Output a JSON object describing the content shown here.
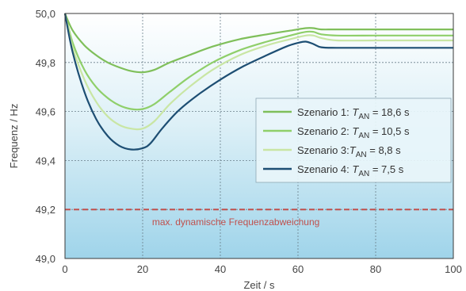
{
  "chart_data": {
    "type": "line",
    "xlabel": "Zeit / s",
    "ylabel": "Frequenz / Hz",
    "xlim": [
      0,
      100
    ],
    "ylim": [
      49.0,
      50.0
    ],
    "xticks": [
      "0",
      "20",
      "40",
      "60",
      "80",
      "100"
    ],
    "yticks": [
      "49,0",
      "49,2",
      "49,4",
      "49,6",
      "49,8",
      "50,0"
    ],
    "grid": "dashed vertical and horizontal",
    "legend_position": "right",
    "background": "gradient white to light blue",
    "series": [
      {
        "name": "Szenario 1: T_AN = 18,6 s",
        "legend": {
          "prefix": "Szenario 1: ",
          "sym": "T",
          "sub": "AN",
          "suffix": " = 18,6 s"
        },
        "color": "#7fbf5a",
        "x": [
          0,
          2,
          5,
          8,
          11,
          14,
          17,
          20,
          23,
          27,
          32,
          38,
          45,
          52,
          58,
          62,
          64,
          66,
          70,
          80,
          90,
          100
        ],
        "y": [
          50.0,
          49.93,
          49.87,
          49.83,
          49.8,
          49.78,
          49.765,
          49.76,
          49.77,
          49.8,
          49.83,
          49.865,
          49.895,
          49.915,
          49.93,
          49.94,
          49.94,
          49.935,
          49.935,
          49.935,
          49.935,
          49.935
        ]
      },
      {
        "name": "Szenario 2: T_AN = 10,5 s",
        "legend": {
          "prefix": "Szenario 2: ",
          "sym": "T",
          "sub": "AN",
          "suffix": " = 10,5 s"
        },
        "color": "#8fcf6a",
        "x": [
          0,
          2,
          5,
          8,
          11,
          14,
          17,
          20,
          23,
          27,
          32,
          38,
          45,
          52,
          58,
          62,
          64,
          66,
          70,
          80,
          90,
          100
        ],
        "y": [
          50.0,
          49.88,
          49.77,
          49.7,
          49.655,
          49.625,
          49.61,
          49.61,
          49.63,
          49.68,
          49.74,
          49.8,
          49.85,
          49.885,
          49.91,
          49.925,
          49.925,
          49.915,
          49.91,
          49.91,
          49.91,
          49.91
        ]
      },
      {
        "name": "Szenario 3: T_AN = 8,8 s",
        "legend": {
          "prefix": "Szenario 3:",
          "sym": "T",
          "sub": "AN",
          "suffix": " = 8,8 s"
        },
        "color": "#c9e6a4",
        "x": [
          0,
          2,
          5,
          8,
          11,
          14,
          17,
          20,
          23,
          27,
          32,
          38,
          45,
          52,
          58,
          62,
          64,
          66,
          70,
          80,
          90,
          100
        ],
        "y": [
          50.0,
          49.86,
          49.73,
          49.64,
          49.58,
          49.545,
          49.53,
          49.53,
          49.56,
          49.63,
          49.7,
          49.77,
          49.83,
          49.87,
          49.895,
          49.91,
          49.91,
          49.9,
          49.89,
          49.89,
          49.89,
          49.89
        ]
      },
      {
        "name": "Szenario 4: T_AN = 7,5 s",
        "legend": {
          "prefix": "Szenario 4: ",
          "sym": "T",
          "sub": "AN",
          "suffix": " = 7,5 s"
        },
        "color": "#1d4e73",
        "x": [
          0,
          2,
          5,
          8,
          11,
          14,
          17,
          20,
          22,
          25,
          29,
          34,
          40,
          46,
          52,
          57,
          60,
          62,
          64,
          66,
          70,
          80,
          90,
          100
        ],
        "y": [
          50.0,
          49.84,
          49.68,
          49.57,
          49.5,
          49.46,
          49.445,
          49.45,
          49.47,
          49.53,
          49.6,
          49.665,
          49.73,
          49.785,
          49.83,
          49.865,
          49.88,
          49.885,
          49.875,
          49.862,
          49.86,
          49.86,
          49.86,
          49.86
        ]
      }
    ],
    "reference_line": {
      "y": 49.2,
      "color": "#c0504d",
      "label": "max. dynamische Frequenzabweichung"
    }
  }
}
